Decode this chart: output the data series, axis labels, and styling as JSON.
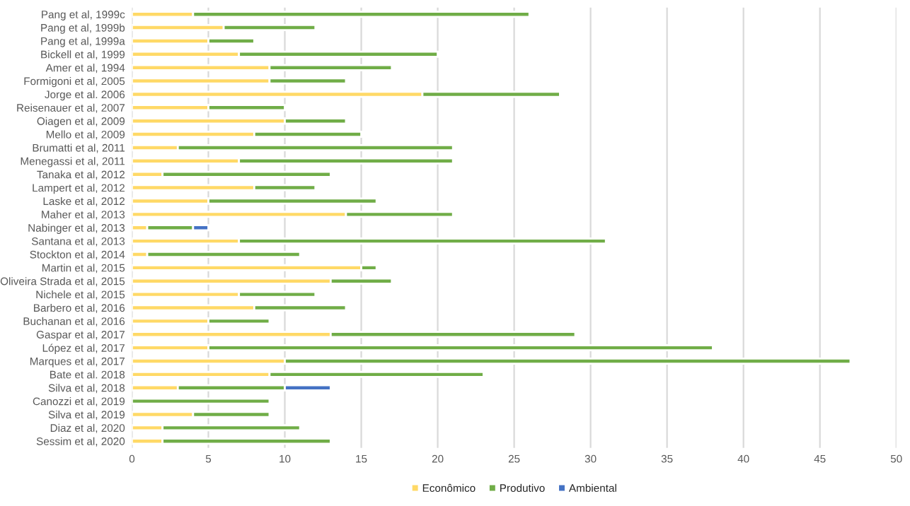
{
  "chart_data": {
    "type": "bar",
    "orientation": "horizontal",
    "stacked": true,
    "categories": [
      "Pang et al, 1999c",
      "Pang et al, 1999b",
      "Pang et al, 1999a",
      "Bickell et al, 1999",
      "Amer et al, 1994",
      "Formigoni et al, 2005",
      "Jorge et al. 2006",
      "Reisenauer et al, 2007",
      "Oiagen et al, 2009",
      "Mello et al, 2009",
      "Brumatti et al, 2011",
      "Menegassi et al, 2011",
      "Tanaka et al, 2012",
      "Lampert et al, 2012",
      "Laske et al, 2012",
      "Maher et al, 2013",
      "Nabinger et al, 2013",
      "Santana et al, 2013",
      "Stockton et al, 2014",
      "Martin et al, 2015",
      "Oliveira Strada et al, 2015",
      "Nichele et al, 2015",
      "Barbero et al, 2016",
      "Buchanan et al, 2016",
      "Gaspar et al, 2017",
      "López et al, 2017",
      "Marques et al, 2017",
      "Bate et al. 2018",
      "Silva et al, 2018",
      "Canozzi et al, 2019",
      "Silva et al, 2019",
      "Diaz et al, 2020",
      "Sessim et al, 2020"
    ],
    "series": [
      {
        "name": "Econômico",
        "color": "#ffd966",
        "values": [
          4,
          6,
          5,
          7,
          9,
          9,
          19,
          5,
          10,
          8,
          3,
          7,
          2,
          8,
          5,
          14,
          1,
          7,
          1,
          15,
          13,
          7,
          8,
          5,
          13,
          5,
          10,
          9,
          3,
          0,
          4,
          2,
          2
        ]
      },
      {
        "name": "Produtivo",
        "color": "#70ad47",
        "values": [
          22,
          6,
          3,
          13,
          8,
          5,
          9,
          5,
          4,
          7,
          18,
          14,
          11,
          4,
          11,
          7,
          3,
          24,
          10,
          1,
          4,
          5,
          6,
          4,
          16,
          33,
          37,
          14,
          7,
          9,
          5,
          9,
          11
        ]
      },
      {
        "name": "Ambiental",
        "color": "#4472c4",
        "values": [
          null,
          null,
          null,
          null,
          null,
          null,
          null,
          null,
          null,
          null,
          null,
          null,
          null,
          null,
          null,
          null,
          1,
          null,
          null,
          null,
          null,
          null,
          null,
          null,
          null,
          null,
          null,
          null,
          3,
          null,
          null,
          null,
          null
        ]
      }
    ],
    "xlim": [
      0,
      50
    ],
    "xticks": [
      0,
      5,
      10,
      15,
      20,
      25,
      30,
      35,
      40,
      45,
      50
    ],
    "grid": "x",
    "legend": "bottom"
  }
}
